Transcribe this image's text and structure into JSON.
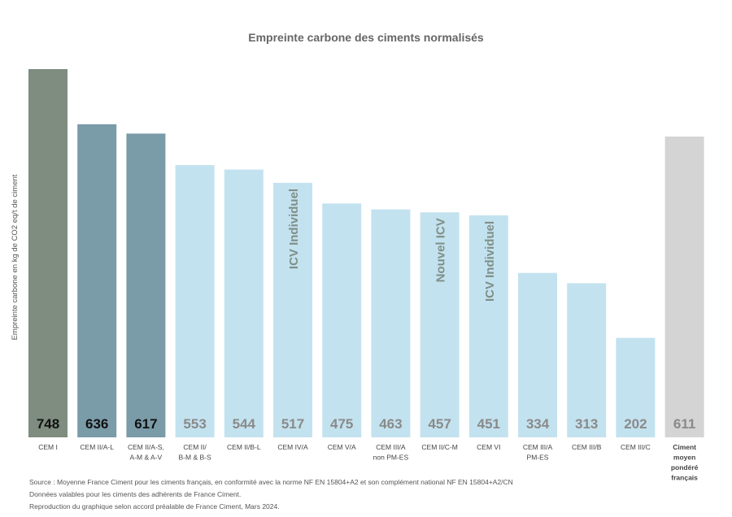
{
  "chart_data": {
    "type": "bar",
    "title": "Empreinte carbone des ciments normalisés",
    "ylabel": "Empreinte carbone en kg de CO2 eq/t de ciment",
    "xlabel": "",
    "ylim": [
      0,
      748
    ],
    "grid": false,
    "legend": "none",
    "categories": [
      [
        "CEM I"
      ],
      [
        "CEM II/A-L"
      ],
      [
        "CEM II/A-S,",
        "A-M & A-V"
      ],
      [
        "CEM II/",
        "B-M & B-S"
      ],
      [
        "CEM II/B-L"
      ],
      [
        "CEM IV/A"
      ],
      [
        "CEM V/A"
      ],
      [
        "CEM III/A",
        "non PM-ES"
      ],
      [
        "CEM II/C-M"
      ],
      [
        "CEM VI"
      ],
      [
        "CEM III/A",
        "PM-ES"
      ],
      [
        "CEM III/B"
      ],
      [
        "CEM III/C"
      ],
      [
        "Ciment",
        "moyen",
        "pondéré",
        "français"
      ]
    ],
    "values": [
      748,
      636,
      617,
      553,
      544,
      517,
      475,
      463,
      457,
      451,
      334,
      313,
      202,
      611
    ],
    "bar_colors": [
      "#7f8c80",
      "#7a9ba8",
      "#7a9ba8",
      "#c3e2ef",
      "#c3e2ef",
      "#c3e2ef",
      "#c3e2ef",
      "#c3e2ef",
      "#c3e2ef",
      "#c3e2ef",
      "#c3e2ef",
      "#c3e2ef",
      "#c3e2ef",
      "#d4d4d4"
    ],
    "value_label_colors": [
      "#111111",
      "#111111",
      "#111111",
      "#8a8a8a",
      "#8a8a8a",
      "#8a8a8a",
      "#8a8a8a",
      "#8a8a8a",
      "#8a8a8a",
      "#8a8a8a",
      "#8a8a8a",
      "#8a8a8a",
      "#8a8a8a",
      "#8a8a8a"
    ],
    "annotations": [
      {
        "bar_index": 5,
        "text": "ICV Individuel"
      },
      {
        "bar_index": 8,
        "text": "Nouvel ICV"
      },
      {
        "bar_index": 9,
        "text": "ICV Individuel"
      }
    ],
    "annotation_color": "#7f8f88"
  },
  "sources": [
    "Source : Moyenne France Ciment pour les ciments français, en conformité avec la norme NF EN 15804+A2 et son complément national NF EN 15804+A2/CN",
    "Données valables pour les ciments des adhérents de France Ciment.",
    "Reproduction du graphique selon accord préalable de France Ciment, Mars 2024."
  ]
}
